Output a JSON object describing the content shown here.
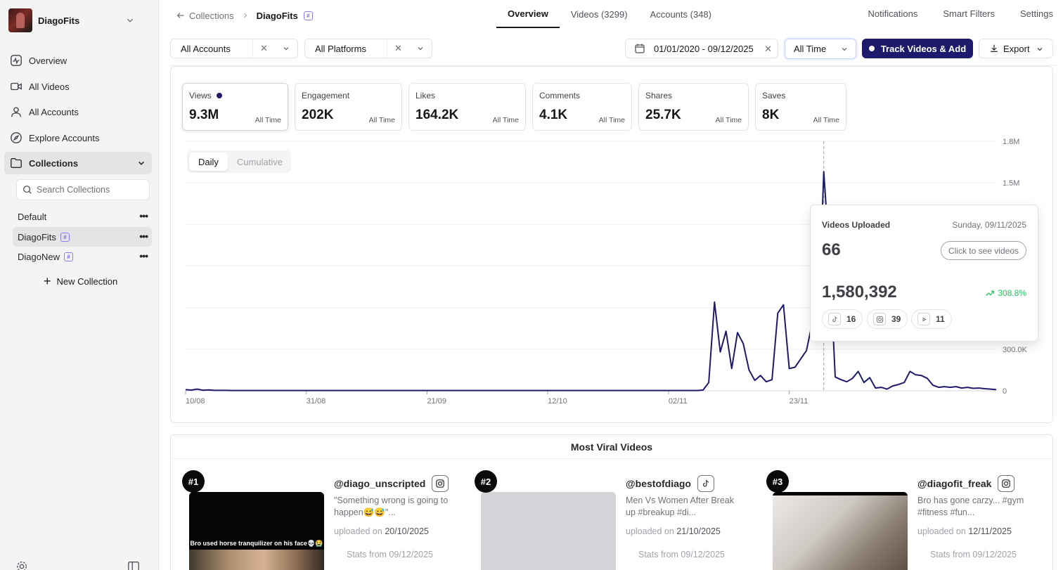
{
  "workspace": {
    "name": "DiagoFits"
  },
  "sidebar": {
    "nav": [
      {
        "label": "Overview"
      },
      {
        "label": "All Videos"
      },
      {
        "label": "All Accounts"
      },
      {
        "label": "Explore Accounts"
      },
      {
        "label": "Collections"
      }
    ],
    "search_placeholder": "Search Collections",
    "collections": [
      {
        "label": "Default"
      },
      {
        "label": "DiagoFits"
      },
      {
        "label": "DiagoNew"
      }
    ],
    "new_collection": "New Collection",
    "hash_glyph": "#"
  },
  "breadcrumb": {
    "parent": "Collections",
    "current": "DiagoFits"
  },
  "tabs": [
    {
      "label": "Overview"
    },
    {
      "label": "Videos (3299)"
    },
    {
      "label": "Accounts (348)"
    }
  ],
  "top_links": [
    "Notifications",
    "Smart Filters",
    "Settings"
  ],
  "filters": {
    "accounts": "All Accounts",
    "platforms": "All Platforms",
    "date_range": "01/01/2020 - 09/12/2025",
    "period": "All Time",
    "track_button": "Track Videos & Add",
    "export_button": "Export"
  },
  "metrics": [
    {
      "title": "Views",
      "value": "9.3M",
      "period": "All Time"
    },
    {
      "title": "Engagement",
      "value": "202K",
      "period": "All Time"
    },
    {
      "title": "Likes",
      "value": "164.2K",
      "period": "All Time"
    },
    {
      "title": "Comments",
      "value": "4.1K",
      "period": "All Time"
    },
    {
      "title": "Shares",
      "value": "25.7K",
      "period": "All Time"
    },
    {
      "title": "Saves",
      "value": "8K",
      "period": "All Time"
    }
  ],
  "chart_toggle": [
    "Daily",
    "Cumulative"
  ],
  "colors": {
    "accent": "#1e1a6b",
    "positive": "#22c55e"
  },
  "chart_data": {
    "type": "line",
    "series": [
      {
        "name": "Views",
        "y": [
          8000,
          5000,
          12000,
          4000,
          6000,
          3000,
          3000,
          3000,
          2000,
          2000,
          2000,
          2000,
          2000,
          2000,
          2000,
          2000,
          2000,
          2000,
          2000,
          2000,
          2000,
          2000,
          2000,
          2000,
          2000,
          2000,
          2000,
          2000,
          2000,
          2000,
          2000,
          2000,
          2000,
          2000,
          2000,
          2000,
          2000,
          2000,
          2000,
          2000,
          2000,
          2000,
          2000,
          2000,
          2000,
          2000,
          2000,
          2000,
          2000,
          2000,
          2000,
          2000,
          2000,
          2000,
          2000,
          2000,
          2000,
          2000,
          2000,
          2000,
          2000,
          2000,
          2000,
          2000,
          2000,
          2000,
          2000,
          2000,
          2000,
          2000,
          2000,
          2000,
          2000,
          2000,
          2000,
          2000,
          2000,
          2000,
          2000,
          2000,
          2000,
          2000,
          2000,
          2000,
          2000,
          2000,
          2000,
          2000,
          2000,
          2000,
          5000,
          60000,
          640000,
          280000,
          430000,
          160000,
          420000,
          340000,
          150000,
          75000,
          110000,
          65000,
          80000,
          560000,
          620000,
          160000,
          170000,
          230000,
          290000,
          490000,
          420000,
          1580392,
          960000,
          100000,
          80000,
          65000,
          90000,
          140000,
          60000,
          95000,
          20000,
          25000,
          12000,
          35000,
          45000,
          60000,
          140000,
          115000,
          110000,
          90000,
          40000,
          25000,
          30000,
          25000,
          30000,
          20000,
          25000,
          18000,
          20000,
          15000,
          12000,
          8000
        ],
        "x_start": "10/08",
        "x_end": "09/12"
      }
    ],
    "x_tick_labels": [
      "10/08",
      "31/08",
      "21/09",
      "12/10",
      "02/11",
      "23/11"
    ],
    "y_tick_labels": [
      "1.8M",
      "1.5M",
      "300.0K",
      "0"
    ],
    "ylim": [
      0,
      1800000
    ],
    "grid": true,
    "highlight_date": "09/11/2025"
  },
  "tooltip": {
    "title": "Videos Uploaded",
    "date": "Sunday, 09/11/2025",
    "count": "66",
    "see_button": "Click to see videos",
    "views": "1,580,392",
    "change": "308.8%",
    "platforms": [
      {
        "icon": "tiktok-icon",
        "count": "16"
      },
      {
        "icon": "instagram-icon",
        "count": "39"
      },
      {
        "icon": "youtube-icon",
        "count": "11"
      }
    ]
  },
  "viral": {
    "title": "Most Viral Videos",
    "videos": [
      {
        "rank": "#1",
        "handle": "@diago_unscripted",
        "platform": "instagram-icon",
        "desc": "\"Something wrong is going to happen😅😅\"...",
        "uploaded_label": "uploaded on",
        "uploaded": "20/10/2025",
        "stats": "Stats from 09/12/2025",
        "caption": "Bro used horse tranquilizer on his face💀😭"
      },
      {
        "rank": "#2",
        "handle": "@bestofdiago",
        "platform": "tiktok-icon",
        "desc": "Men Vs Women After Break up #breakup #di...",
        "uploaded_label": "uploaded on",
        "uploaded": "21/10/2025",
        "stats": "Stats from 09/12/2025"
      },
      {
        "rank": "#3",
        "handle": "@diagofit_freak",
        "platform": "instagram-icon",
        "desc": "Bro has gone carzy... #gym #fitness #fun...",
        "uploaded_label": "uploaded on",
        "uploaded": "12/11/2025",
        "stats": "Stats from 09/12/2025"
      }
    ]
  }
}
